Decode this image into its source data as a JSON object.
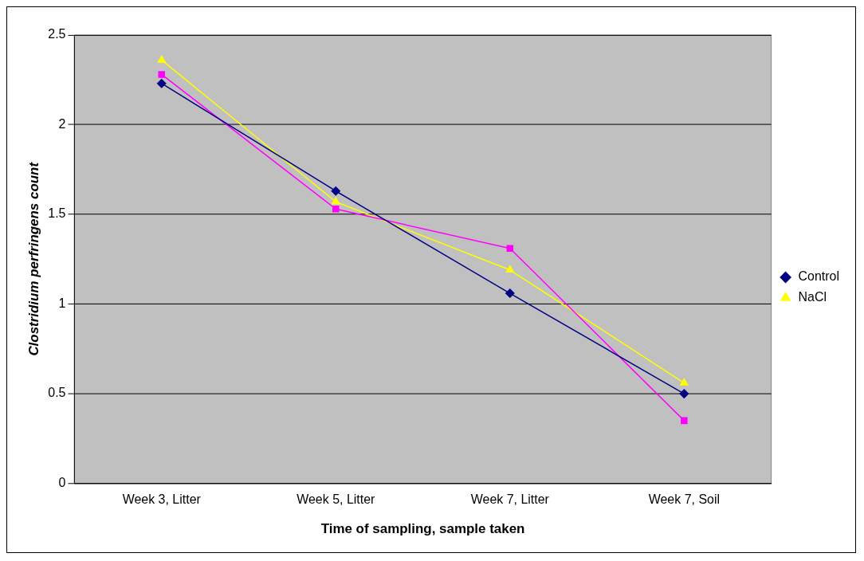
{
  "chart_data": {
    "type": "line",
    "xlabel": "Time of sampling, sample taken",
    "ylabel": "Clostridium perfringens count",
    "categories": [
      "Week 3, Litter",
      "Week 5, Litter",
      "Week 7, Litter",
      "Week 7, Soil"
    ],
    "series": [
      {
        "name": "Control",
        "color": "#000080",
        "marker": "diamond",
        "values": [
          2.23,
          1.63,
          1.06,
          0.5
        ]
      },
      {
        "color": "#ff00ff",
        "marker": "square",
        "values": [
          2.28,
          1.53,
          1.31,
          0.35
        ]
      },
      {
        "name": "NaCl",
        "color": "#ffff00",
        "marker": "triangle",
        "values": [
          2.36,
          1.57,
          1.19,
          0.56
        ]
      }
    ],
    "ylim": [
      0,
      2.5
    ],
    "yticks": [
      0,
      0.5,
      1,
      1.5,
      2,
      2.5
    ],
    "grid": "y",
    "legend": "right"
  }
}
